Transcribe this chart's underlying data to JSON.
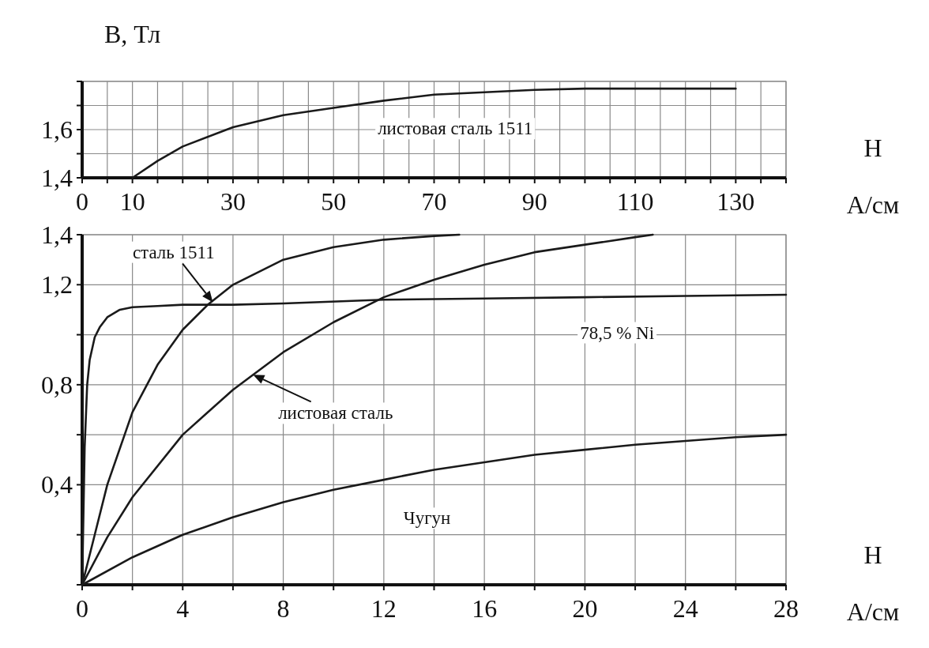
{
  "chart_data": [
    {
      "type": "line",
      "ylabel": "B, Тл",
      "xlabel": "H\nА/см",
      "xlim": [
        0,
        140
      ],
      "ylim": [
        1.4,
        1.8
      ],
      "grid": true,
      "marker": "none",
      "line_style": "solid",
      "xticks": [
        {
          "value": 0,
          "label": "0"
        },
        {
          "value": 5,
          "label": null
        },
        10,
        {
          "value": 15,
          "label": null
        },
        {
          "value": 20,
          "label": null
        },
        {
          "value": 25,
          "label": null
        },
        30,
        {
          "value": 35,
          "label": null
        },
        {
          "value": 40,
          "label": null
        },
        {
          "value": 45,
          "label": null
        },
        50,
        {
          "value": 55,
          "label": null
        },
        {
          "value": 60,
          "label": null
        },
        {
          "value": 65,
          "label": null
        },
        70,
        {
          "value": 75,
          "label": null
        },
        {
          "value": 80,
          "label": null
        },
        {
          "value": 85,
          "label": null
        },
        90,
        {
          "value": 95,
          "label": null
        },
        {
          "value": 100,
          "label": null
        },
        {
          "value": 105,
          "label": null
        },
        110,
        {
          "value": 115,
          "label": null
        },
        {
          "value": 120,
          "label": null
        },
        {
          "value": 125,
          "label": null
        },
        130,
        {
          "value": 135,
          "label": null
        },
        {
          "value": 140,
          "label": null
        }
      ],
      "yticks": [
        {
          "value": 1.4,
          "label": "1,4"
        },
        {
          "value": 1.5,
          "label": null
        },
        {
          "value": 1.6,
          "label": "1,6"
        },
        {
          "value": 1.7,
          "label": null
        },
        {
          "value": 1.8,
          "label": null
        }
      ],
      "series": [
        {
          "color": "#1a1a1a",
          "x": [
            10,
            15,
            20,
            30,
            40,
            50,
            60,
            70,
            80,
            90,
            100,
            110,
            120,
            130
          ],
          "values": [
            1.4,
            1.47,
            1.53,
            1.61,
            1.66,
            1.69,
            1.72,
            1.745,
            1.755,
            1.765,
            1.77,
            1.77,
            1.77,
            1.77
          ]
        }
      ],
      "annotations": [
        "листовая сталь 1511"
      ]
    },
    {
      "type": "line",
      "xlabel": "H\nА/см",
      "xlim": [
        0,
        28
      ],
      "ylim": [
        0,
        1.4
      ],
      "grid": true,
      "marker": "none",
      "line_style": "solid",
      "xticks": [
        0,
        {
          "value": 2,
          "label": null
        },
        4,
        {
          "value": 6,
          "label": null
        },
        8,
        {
          "value": 10,
          "label": null
        },
        12,
        {
          "value": 14,
          "label": null
        },
        16,
        {
          "value": 18,
          "label": null
        },
        20,
        {
          "value": 22,
          "label": null
        },
        24,
        {
          "value": 26,
          "label": null
        },
        28
      ],
      "yticks": [
        {
          "value": 0,
          "label": null
        },
        {
          "value": 0.2,
          "label": null
        },
        {
          "value": 0.4,
          "label": "0,4"
        },
        {
          "value": 0.6,
          "label": null
        },
        {
          "value": 0.8,
          "label": "0,8"
        },
        {
          "value": 1.0,
          "label": null
        },
        {
          "value": 1.2,
          "label": "1,2"
        },
        {
          "value": 1.4,
          "label": "1,4"
        }
      ],
      "series": [
        {
          "color": "#1a1a1a",
          "x": [
            0,
            0.1,
            0.2,
            0.3,
            0.5,
            0.7,
            1,
            1.5,
            2,
            3,
            4,
            6,
            8,
            12,
            16,
            20,
            24,
            28
          ],
          "values": [
            0,
            0.55,
            0.8,
            0.9,
            0.99,
            1.03,
            1.07,
            1.1,
            1.11,
            1.115,
            1.12,
            1.12,
            1.125,
            1.14,
            1.145,
            1.15,
            1.155,
            1.16
          ]
        },
        {
          "color": "#1a1a1a",
          "x": [
            0,
            0.5,
            1,
            2,
            3,
            4,
            5,
            6,
            8,
            10,
            12,
            14,
            15
          ],
          "values": [
            0,
            0.2,
            0.4,
            0.69,
            0.88,
            1.02,
            1.12,
            1.2,
            1.3,
            1.35,
            1.38,
            1.395,
            1.4
          ]
        },
        {
          "color": "#1a1a1a",
          "x": [
            0,
            1,
            2,
            4,
            6,
            8,
            10,
            12,
            14,
            16,
            18,
            20,
            22,
            22.7
          ],
          "values": [
            0,
            0.19,
            0.35,
            0.6,
            0.78,
            0.93,
            1.05,
            1.15,
            1.22,
            1.28,
            1.33,
            1.36,
            1.39,
            1.4
          ]
        },
        {
          "color": "#1a1a1a",
          "x": [
            0,
            2,
            4,
            6,
            8,
            10,
            12,
            14,
            16,
            18,
            20,
            22,
            24,
            26,
            28
          ],
          "values": [
            0,
            0.11,
            0.2,
            0.27,
            0.33,
            0.38,
            0.42,
            0.46,
            0.49,
            0.52,
            0.54,
            0.56,
            0.575,
            0.59,
            0.6
          ]
        }
      ],
      "annotations": [
        {
          "text": "сталь 1511",
          "x": 5.2,
          "y": 1.13
        },
        {
          "text": "листовая сталь",
          "x": 6.8,
          "y": 0.84
        },
        "78,5 % Ni",
        "Чугун"
      ]
    }
  ]
}
